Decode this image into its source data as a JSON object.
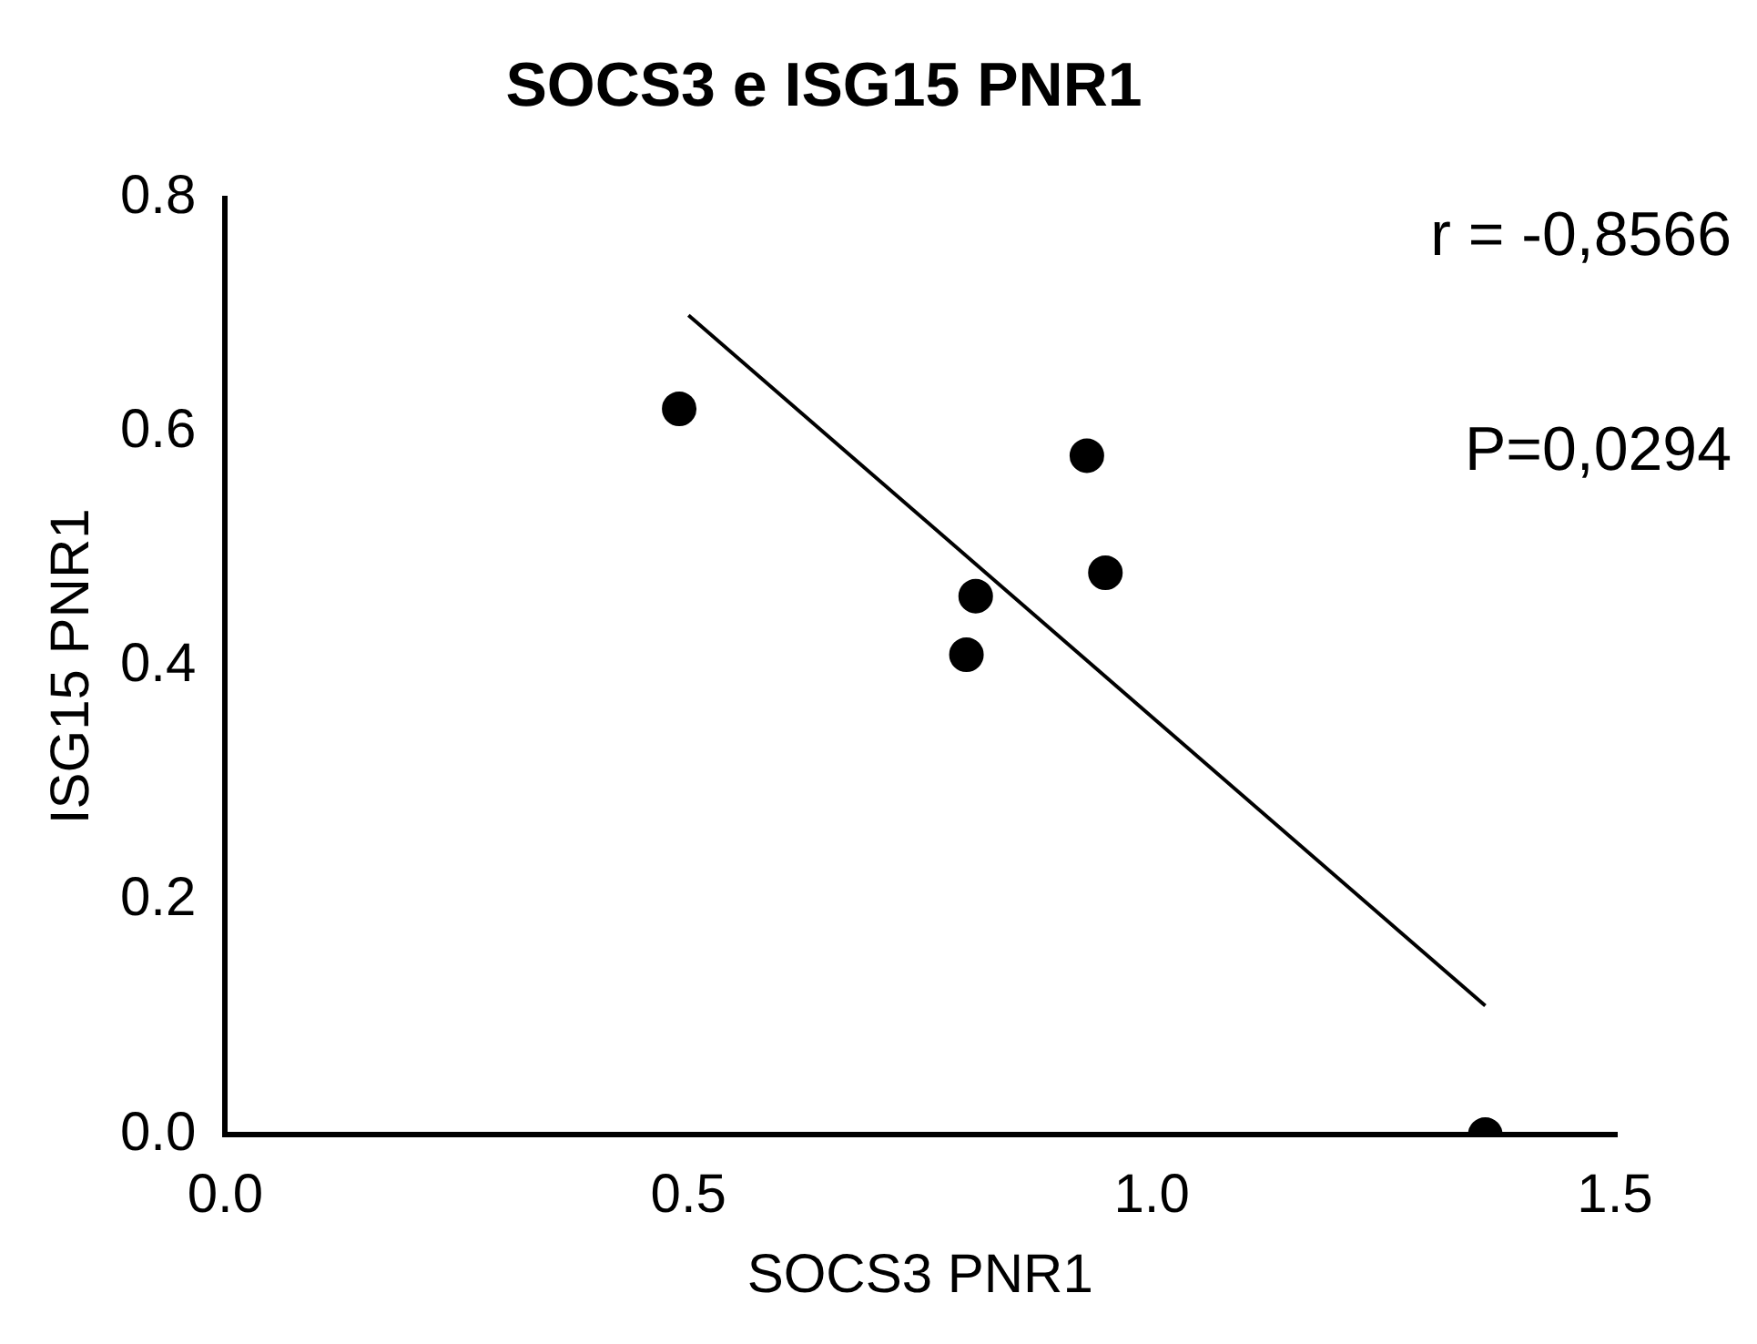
{
  "chart_data": {
    "type": "scatter",
    "title": "SOCS3 e ISG15 PNR1",
    "xlabel": "SOCS3 PNR1",
    "ylabel": "ISG15 PNR1",
    "xlim": [
      0,
      1.5
    ],
    "xticks": [
      {
        "value": 0,
        "label": "0.0"
      },
      0.5,
      {
        "value": 1,
        "label": "1.0"
      },
      1.5
    ],
    "ylim": [
      0,
      0.8
    ],
    "yticks": [
      {
        "value": 0,
        "label": "0.0"
      },
      0.2,
      0.4,
      0.6,
      0.8
    ],
    "grid": false,
    "legend": false,
    "annotations": [
      "r = -0,8566",
      "P=0,0294"
    ],
    "series": [
      {
        "marker": "circle",
        "color": "#000000",
        "x": [
          0.49,
          0.81,
          0.8,
          0.93,
          0.95,
          1.36
        ],
        "values": [
          0.62,
          0.46,
          0.41,
          0.58,
          0.48,
          0
        ]
      },
      {
        "type": "line",
        "marker": "none",
        "color": "#000000",
        "x": [
          0.5,
          1.36
        ],
        "values": [
          0.7,
          0.11
        ]
      }
    ]
  }
}
